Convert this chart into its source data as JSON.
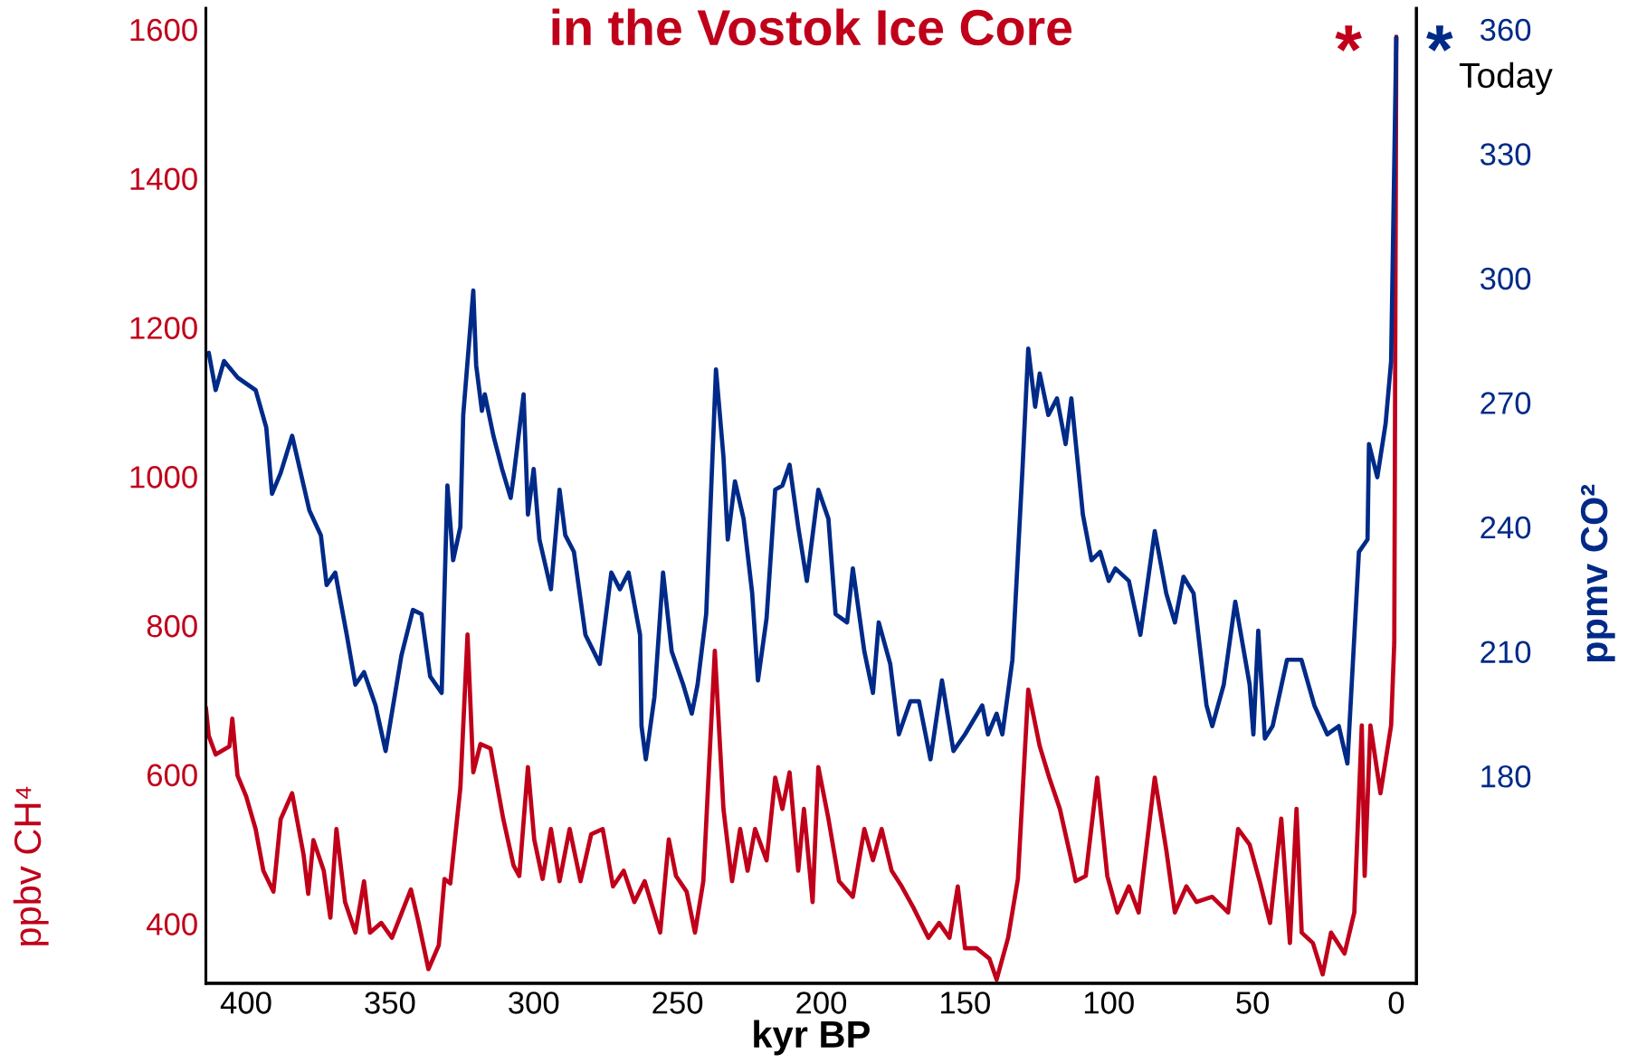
{
  "chart_data": {
    "type": "line",
    "title": "in the Vostok Ice Core",
    "xlabel": "kyr BP",
    "ylabel": "ppbv CH⁴",
    "y2label": "ppmv CO²",
    "xlim": [
      414,
      -7
    ],
    "xticks": [
      400,
      350,
      300,
      250,
      200,
      150,
      100,
      50,
      0
    ],
    "ylim": [
      320,
      1628
    ],
    "yticks": [
      400,
      600,
      800,
      1000,
      1200,
      1400,
      1600
    ],
    "y2lim": [
      130,
      365
    ],
    "y2ticks": [
      180,
      210,
      240,
      270,
      300,
      330,
      360
    ],
    "grid": false,
    "legend": false,
    "line_style": "solid",
    "marker": "none",
    "annotations": [
      "*",
      "*",
      "Today"
    ],
    "series": [
      {
        "color": "#c0001a",
        "x": [
          414,
          413,
          410.6,
          405.8,
          404.8,
          403,
          400,
          396.7,
          394,
          390.5,
          388,
          384,
          380,
          378.4,
          376.6,
          373,
          370.7,
          368.6,
          365.6,
          362,
          359,
          356.9,
          353,
          349.3,
          342.7,
          340,
          336.6,
          333,
          331,
          329,
          325.5,
          323,
          321,
          318.5,
          315,
          310.6,
          307,
          305,
          302,
          299.8,
          296.9,
          294,
          291,
          287.5,
          283.7,
          280,
          276,
          272.4,
          268.7,
          265,
          261.4,
          256,
          253,
          250.5,
          246.8,
          243.9,
          241,
          237,
          234,
          231,
          228.2,
          225.6,
          223,
          219,
          216,
          213.5,
          211,
          208,
          206,
          203,
          201,
          197.5,
          193.8,
          189,
          185,
          182,
          179,
          175.5,
          172,
          168,
          162.7,
          159,
          155.4,
          152.5,
          150,
          146,
          141.5,
          139,
          135,
          131.6,
          128,
          124,
          120.7,
          117,
          113,
          111.5,
          108,
          104,
          100.5,
          97,
          93,
          89.6,
          84,
          80,
          77,
          73,
          69.5,
          64,
          58.5,
          55,
          51,
          47.5,
          43.9,
          40,
          37,
          34.7,
          32.9,
          29,
          25.6,
          22.7,
          18,
          14.6,
          12,
          11,
          9,
          5.5,
          1.8,
          0.7,
          0
        ],
        "values": [
          690,
          652,
          627,
          638,
          675,
          599,
          571,
          527,
          471,
          443,
          540,
          575,
          492,
          440,
          512,
          471,
          408,
          527,
          429,
          388,
          457,
          388,
          401,
          381,
          446,
          401,
          339,
          371,
          460,
          454,
          582,
          788,
          603,
          641,
          635,
          541,
          478,
          464,
          610,
          513,
          460,
          527,
          457,
          527,
          457,
          520,
          527,
          450,
          471,
          429,
          457,
          388,
          513,
          464,
          443,
          388,
          457,
          766,
          554,
          457,
          527,
          471,
          527,
          485,
          596,
          554,
          603,
          471,
          554,
          429,
          610,
          541,
          457,
          436,
          527,
          485,
          527,
          471,
          450,
          422,
          381,
          401,
          381,
          450,
          367,
          367,
          353,
          325,
          381,
          460,
          714,
          638,
          596,
          554,
          485,
          457,
          464,
          596,
          464,
          415,
          450,
          415,
          596,
          499,
          415,
          450,
          429,
          436,
          415,
          527,
          506,
          457,
          401,
          541,
          374,
          554,
          388,
          374,
          332,
          388,
          360,
          415,
          666,
          464,
          666,
          575,
          666,
          777,
          1590
        ]
      },
      {
        "color": "#002a88",
        "axis": "y2",
        "x": [
          413,
          410.6,
          407.7,
          402.9,
          396.7,
          393,
          391,
          388,
          384,
          380,
          378,
          374,
          372,
          369,
          365,
          362,
          359,
          355,
          351.5,
          346,
          342,
          339,
          336,
          332,
          330,
          328,
          325.5,
          324.5,
          321,
          320,
          318,
          317,
          314,
          311,
          308,
          307,
          303.5,
          302,
          300,
          298,
          294,
          291,
          289,
          286,
          282,
          277,
          273,
          270,
          267,
          263,
          262.5,
          261,
          258,
          255,
          252,
          248,
          245,
          243,
          240,
          236.6,
          234,
          232.5,
          230,
          227,
          224,
          222,
          219,
          216,
          213.5,
          211,
          208,
          205,
          201,
          197.5,
          195,
          191,
          189,
          185,
          182,
          180,
          176,
          173,
          169,
          166,
          162,
          158,
          154,
          150,
          144,
          142,
          139,
          137,
          133.5,
          130,
          128,
          125.6,
          124,
          121,
          118,
          115,
          113,
          109,
          106,
          103,
          100,
          97.7,
          93,
          89,
          84,
          80,
          77,
          74,
          70.5,
          66,
          64,
          60,
          56,
          51,
          49.7,
          48,
          45.7,
          43,
          38,
          33,
          28.5,
          24,
          20,
          17,
          13,
          10,
          9.5,
          6.6,
          3.7,
          1.8,
          0
        ],
        "values": [
          282,
          273,
          280,
          276,
          273,
          264,
          248,
          253,
          262,
          250,
          244,
          238,
          226,
          229,
          214,
          202,
          205,
          197,
          186,
          209,
          220,
          219,
          204,
          200,
          250,
          232,
          240,
          267,
          297,
          279,
          268,
          272,
          262,
          254,
          247,
          252,
          272,
          243,
          254,
          237,
          225,
          249,
          238,
          234,
          214,
          207,
          229,
          225,
          229,
          214,
          192,
          184,
          199,
          229,
          210,
          202,
          195,
          202,
          219,
          278,
          257,
          237,
          251,
          242,
          224,
          203,
          218,
          249,
          250,
          255,
          240,
          227,
          249,
          242,
          219,
          217,
          230,
          210,
          200,
          217,
          207,
          190,
          198,
          198,
          184,
          203,
          186,
          190,
          197,
          190,
          195,
          190,
          208,
          254,
          283,
          269,
          277,
          267,
          271,
          260,
          271,
          243,
          232,
          234,
          227,
          230,
          227,
          214,
          239,
          224,
          217,
          228,
          224,
          197,
          192,
          202,
          222,
          202,
          190,
          215,
          189,
          192,
          208,
          208,
          197,
          190,
          192,
          183,
          234,
          237,
          260,
          252,
          265,
          280,
          358
        ]
      }
    ]
  }
}
